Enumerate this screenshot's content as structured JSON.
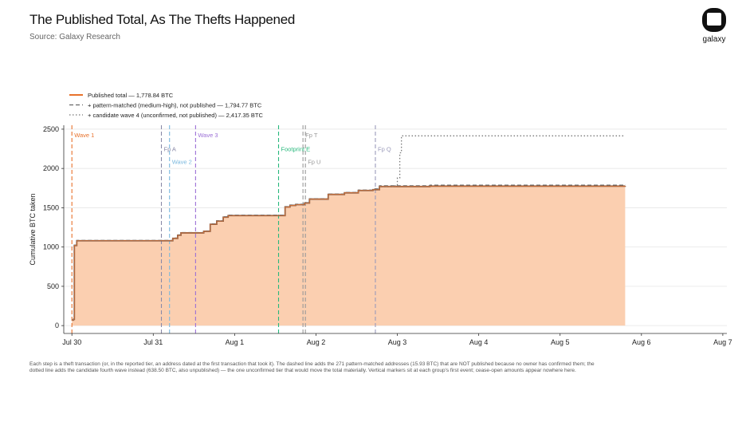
{
  "header": {
    "title": "The Published Total, As The Thefts Happened",
    "subtitle": "Source: Galaxy Research",
    "logo_text": "galaxy"
  },
  "footnote": "Each step is a theft transaction (or, in the reported tier, an address dated at the first transaction that took it). The dashed line adds the 271 pattern-matched addresses (15.93 BTC) that are NOT published because no owner has confirmed them; the dotted line adds the candidate fourth wave instead (638.50 BTC, also unpublished) — the one unconfirmed tier that would move the total materially. Vertical markers sit at each group's first event; cease-open amounts appear nowhere here.",
  "chart_data": {
    "type": "area",
    "ylabel": "Cumulative BTC taken",
    "xlabel": "",
    "ylim": [
      -100,
      2550
    ],
    "xlim": [
      -0.1,
      8.05
    ],
    "x_ticks": [
      {
        "x": 0,
        "label": "Jul 30"
      },
      {
        "x": 1,
        "label": "Jul 31"
      },
      {
        "x": 2,
        "label": "Aug 1"
      },
      {
        "x": 3,
        "label": "Aug 2"
      },
      {
        "x": 4,
        "label": "Aug 3"
      },
      {
        "x": 5,
        "label": "Aug 4"
      },
      {
        "x": 6,
        "label": "Aug 5"
      },
      {
        "x": 7,
        "label": "Aug 6"
      },
      {
        "x": 8,
        "label": "Aug 7"
      }
    ],
    "y_ticks": [
      0,
      500,
      1000,
      1500,
      2000,
      2500
    ],
    "grid": "horizontal",
    "legend_position": "top-left",
    "colors": {
      "published": "#e8722c",
      "published_edge": "#7a5a4a",
      "fill": "#fbcfb0",
      "pattern": "#666666",
      "candidate": "#777777"
    },
    "series": [
      {
        "name": "Published total — 1,778.84 BTC",
        "style": "solid",
        "points": [
          [
            0,
            70
          ],
          [
            0.02,
            80
          ],
          [
            0.03,
            1020
          ],
          [
            0.06,
            1080
          ],
          [
            1.18,
            1080
          ],
          [
            1.24,
            1110
          ],
          [
            1.3,
            1150
          ],
          [
            1.34,
            1180
          ],
          [
            1.62,
            1200
          ],
          [
            1.7,
            1290
          ],
          [
            1.78,
            1330
          ],
          [
            1.86,
            1380
          ],
          [
            1.92,
            1400
          ],
          [
            2.55,
            1400
          ],
          [
            2.62,
            1510
          ],
          [
            2.68,
            1530
          ],
          [
            2.75,
            1540
          ],
          [
            2.86,
            1560
          ],
          [
            2.92,
            1610
          ],
          [
            3.1,
            1610
          ],
          [
            3.15,
            1670
          ],
          [
            3.35,
            1690
          ],
          [
            3.52,
            1720
          ],
          [
            3.7,
            1730
          ],
          [
            3.78,
            1770
          ],
          [
            4.4,
            1775
          ],
          [
            6.8,
            1778.84
          ]
        ]
      },
      {
        "name": "+ pattern-matched (medium-high), not published — 1,794.77 BTC",
        "style": "dashed",
        "points": [
          [
            0,
            70
          ],
          [
            0.02,
            80
          ],
          [
            0.03,
            1025
          ],
          [
            0.06,
            1085
          ],
          [
            1.18,
            1085
          ],
          [
            1.24,
            1115
          ],
          [
            1.3,
            1155
          ],
          [
            1.34,
            1185
          ],
          [
            1.62,
            1205
          ],
          [
            1.7,
            1295
          ],
          [
            1.78,
            1335
          ],
          [
            1.86,
            1385
          ],
          [
            1.92,
            1405
          ],
          [
            2.55,
            1405
          ],
          [
            2.62,
            1515
          ],
          [
            2.68,
            1535
          ],
          [
            2.75,
            1545
          ],
          [
            2.86,
            1565
          ],
          [
            2.92,
            1615
          ],
          [
            3.1,
            1615
          ],
          [
            3.15,
            1675
          ],
          [
            3.35,
            1695
          ],
          [
            3.52,
            1725
          ],
          [
            3.7,
            1740
          ],
          [
            3.78,
            1780
          ],
          [
            4.4,
            1788
          ],
          [
            6.8,
            1794.77
          ]
        ]
      },
      {
        "name": "+ candidate wave 4 (unconfirmed, not published) — 2,417.35 BTC",
        "style": "dotted",
        "points": [
          [
            3.78,
            1770
          ],
          [
            3.96,
            1780
          ],
          [
            4.0,
            1880
          ],
          [
            4.03,
            2200
          ],
          [
            4.05,
            2415
          ],
          [
            6.8,
            2417.35
          ]
        ]
      }
    ],
    "markers": [
      {
        "x": 0,
        "label": "Wave 1",
        "color": "#e8722c",
        "label_y": 2400
      },
      {
        "x": 1.1,
        "label": "Fp A",
        "color": "#8a8aa8",
        "label_y": 2220
      },
      {
        "x": 1.2,
        "label": "Wave 2",
        "color": "#7ab8de",
        "label_y": 2060
      },
      {
        "x": 1.52,
        "label": "Wave 3",
        "color": "#9b6fd6",
        "label_y": 2400
      },
      {
        "x": 2.54,
        "label": "Footprint E",
        "color": "#28b87c",
        "label_y": 2220
      },
      {
        "x": 2.84,
        "label": "Fp T",
        "color": "#999999",
        "label_y": 2400
      },
      {
        "x": 2.87,
        "label": "Fp U",
        "color": "#999999",
        "label_y": 2060
      },
      {
        "x": 3.73,
        "label": "Fp Q",
        "color": "#9a9aba",
        "label_y": 2220
      }
    ]
  }
}
